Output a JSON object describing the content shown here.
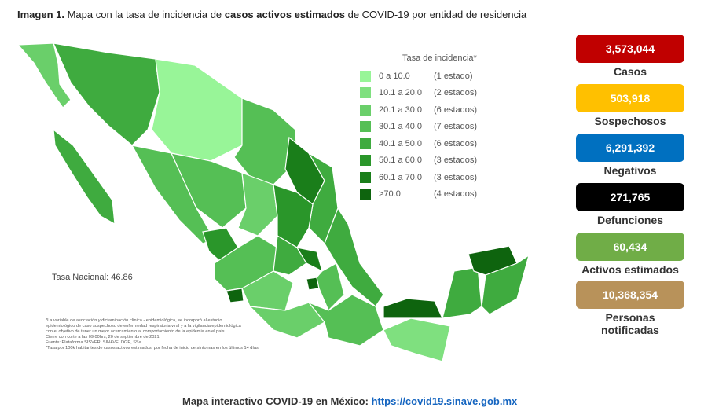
{
  "title": {
    "prefix": "Imagen 1.",
    "text1": " Mapa con la tasa de incidencia de ",
    "bold": "casos activos estimados",
    "text2": " de COVID-19 por entidad de residencia"
  },
  "legend": {
    "title": "Tasa de incidencia*",
    "items": [
      {
        "range": "0   a  10.0",
        "count": "(1 estado)",
        "color": "#98f598"
      },
      {
        "range": "10.1  a  20.0",
        "count": "(2 estados)",
        "color": "#7fe07f"
      },
      {
        "range": "20.1  a  30.0",
        "count": "(6 estados)",
        "color": "#6acf6a"
      },
      {
        "range": "30.1  a  40.0",
        "count": "(7 estados)",
        "color": "#55bf55"
      },
      {
        "range": "40.1  a  50.0",
        "count": "(6 estados)",
        "color": "#3fab3f"
      },
      {
        "range": "50.1  a  60.0",
        "count": "(3 estados)",
        "color": "#2a962a"
      },
      {
        "range": "60.1  a  70.0",
        "count": "(3 estados)",
        "color": "#1a7e1a"
      },
      {
        "range": ">70.0",
        "count": "(4 estados)",
        "color": "#0e640e"
      }
    ]
  },
  "national_rate": "Tasa Nacional: 46.86",
  "notes": [
    "*La variable de asociación y dictaminación clínica - epidemiológica, se incorporó al estudio",
    "epidemiológico de caso sospechoso de enfermedad respiratoria viral y a la vigilancia epidemiológica",
    "con el objetivo de tener un mejor acercamiento al comportamiento de la epidemia en el país.",
    "Cierre con corte a las 09:00hrs, 20 de septiembre de 2021",
    "Fuente: Plataforma SISVER, SINAVE, DGE, SSa.",
    "*Tasa por 100k habitantes de casos activos estimados, por fecha de inicio de síntomas en los últimos 14 días."
  ],
  "stats": [
    {
      "value": "3,573,044",
      "label": "Casos",
      "color": "#c00000"
    },
    {
      "value": "503,918",
      "label": "Sospechosos",
      "color": "#ffc000"
    },
    {
      "value": "6,291,392",
      "label": "Negativos",
      "color": "#0070c0"
    },
    {
      "value": "271,765",
      "label": "Defunciones",
      "color": "#000000"
    },
    {
      "value": "60,434",
      "label": "Activos estimados",
      "color": "#70ad47"
    },
    {
      "value": "10,368,354",
      "label": "Personas notificadas",
      "color": "#b8925a"
    }
  ],
  "footer": {
    "text": "Mapa interactivo COVID-19 en México: ",
    "link": "https://covid19.sinave.gob.mx"
  }
}
